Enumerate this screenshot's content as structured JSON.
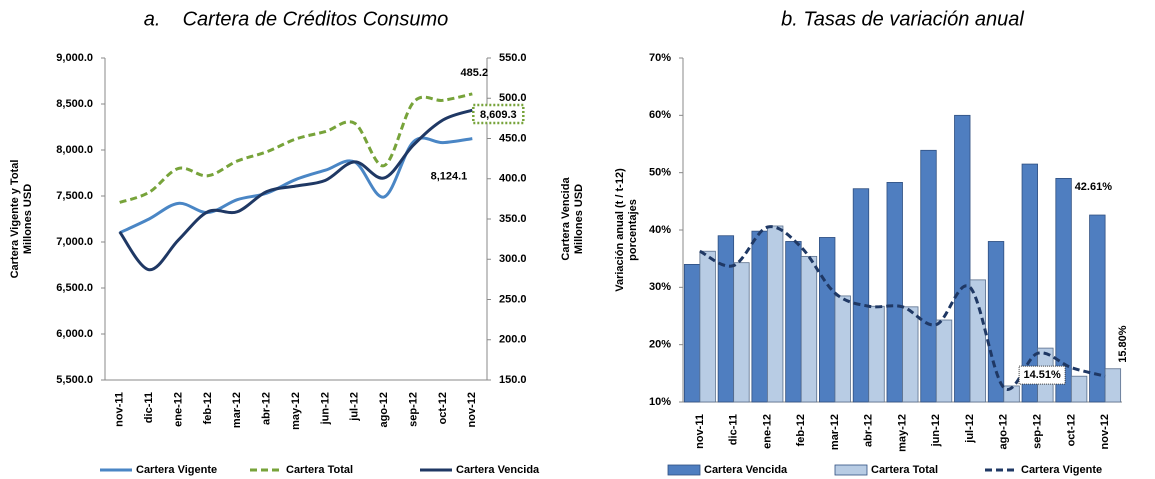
{
  "chart_data": [
    {
      "type": "line",
      "title": "a.    Cartera de Créditos Consumo",
      "ylabel": [
        "Cartera Vigente y Total",
        "Millones USD"
      ],
      "y2label": [
        "Cartera Vencida",
        "Millones USD"
      ],
      "categories": [
        "nov-11",
        "dic-11",
        "ene-12",
        "feb-12",
        "mar-12",
        "abr-12",
        "may-12",
        "jun-12",
        "jul-12",
        "ago-12",
        "sep-12",
        "oct-12",
        "nov-12"
      ],
      "series": [
        {
          "name": "Cartera Vigente",
          "color": "#4a86c5",
          "dash": false,
          "values": [
            7100,
            7250,
            7420,
            7320,
            7460,
            7530,
            7680,
            7780,
            7870,
            7490,
            8090,
            8080,
            8124.1
          ],
          "value_labels": [
            null,
            null,
            null,
            null,
            null,
            null,
            null,
            null,
            null,
            null,
            null,
            null,
            "8,124.1"
          ]
        },
        {
          "name": "Cartera Total",
          "color": "#77a33a",
          "dash": true,
          "values": [
            7430,
            7540,
            7800,
            7720,
            7880,
            7980,
            8120,
            8200,
            8290,
            7830,
            8520,
            8540,
            8609.3
          ],
          "value_labels": [
            null,
            null,
            null,
            null,
            null,
            null,
            null,
            null,
            null,
            null,
            null,
            null,
            "8,609.3"
          ]
        },
        {
          "name": "Cartera Vencida",
          "color": "#1f3864",
          "dash": false,
          "axis": "y2",
          "values": [
            334,
            287,
            324,
            359,
            359,
            384,
            391,
            398,
            421,
            401,
            442,
            473,
            485.2
          ]
        }
      ],
      "ylim": [
        5500,
        9000
      ],
      "yticks": [
        {
          "value": 5500,
          "label": "5,500.0"
        },
        {
          "value": 6000,
          "label": "6,000.0"
        },
        {
          "value": 6500,
          "label": "6,500.0"
        },
        {
          "value": 7000,
          "label": "7,000.0"
        },
        {
          "value": 7500,
          "label": "7,500.0"
        },
        {
          "value": 8000,
          "label": "8,000.0"
        },
        {
          "value": 8500,
          "label": "8,500.0"
        },
        {
          "value": 9000,
          "label": "9,000.0"
        }
      ],
      "y2lim": [
        150,
        550
      ],
      "y2ticks": [
        {
          "value": 150,
          "label": "150.0"
        },
        {
          "value": 200,
          "label": "200.0"
        },
        {
          "value": 250,
          "label": "250.0"
        },
        {
          "value": 300,
          "label": "300.0"
        },
        {
          "value": 350,
          "label": "350.0"
        },
        {
          "value": 400,
          "label": "400.0"
        },
        {
          "value": 450,
          "label": "450.0"
        },
        {
          "value": 500,
          "label": "500.0"
        },
        {
          "value": 550,
          "label": "550.0"
        }
      ],
      "grid": false
    },
    {
      "type": "bar",
      "title": "b. Tasas de variación anual",
      "ylabel": [
        "Variación anual (t / t-12)",
        "porcentajes"
      ],
      "categories": [
        "nov-11",
        "dic-11",
        "ene-12",
        "feb-12",
        "mar-12",
        "abr-12",
        "may-12",
        "jun-12",
        "jul-12",
        "ago-12",
        "sep-12",
        "oct-12",
        "nov-12"
      ],
      "series": [
        {
          "name": "Cartera Vencida",
          "color": "#4f7ec0",
          "values": [
            34,
            39,
            39.8,
            38,
            38.7,
            47.2,
            48.3,
            53.9,
            60,
            38,
            51.5,
            49,
            42.61
          ],
          "value_labels": [
            null,
            null,
            null,
            null,
            null,
            null,
            null,
            null,
            null,
            null,
            null,
            null,
            "42.61%"
          ]
        },
        {
          "name": "Cartera Total",
          "color": "#b8cce4",
          "values": [
            36.3,
            34.3,
            40.7,
            35.4,
            28.5,
            26.7,
            26.6,
            24.3,
            31.3,
            12.8,
            19.4,
            14.5,
            15.8
          ],
          "value_labels": [
            null,
            null,
            null,
            null,
            null,
            null,
            null,
            null,
            null,
            null,
            null,
            null,
            "15.80%"
          ]
        },
        {
          "name": "Cartera Vigente",
          "color": "#1f3864",
          "type": "line",
          "dash": true,
          "values": [
            36.3,
            33.8,
            40.5,
            37,
            29,
            26.7,
            26.6,
            23.5,
            30,
            12.5,
            18.5,
            16,
            14.51
          ],
          "value_labels": [
            null,
            null,
            null,
            null,
            null,
            null,
            null,
            null,
            null,
            null,
            null,
            null,
            "14.51%"
          ]
        }
      ],
      "ylim": [
        10,
        70
      ],
      "yticks": [
        {
          "value": 10,
          "label": "10%"
        },
        {
          "value": 20,
          "label": "20%"
        },
        {
          "value": 30,
          "label": "30%"
        },
        {
          "value": 40,
          "label": "40%"
        },
        {
          "value": 50,
          "label": "50%"
        },
        {
          "value": 60,
          "label": "60%"
        },
        {
          "value": 70,
          "label": "70%"
        }
      ],
      "grid": false
    }
  ]
}
